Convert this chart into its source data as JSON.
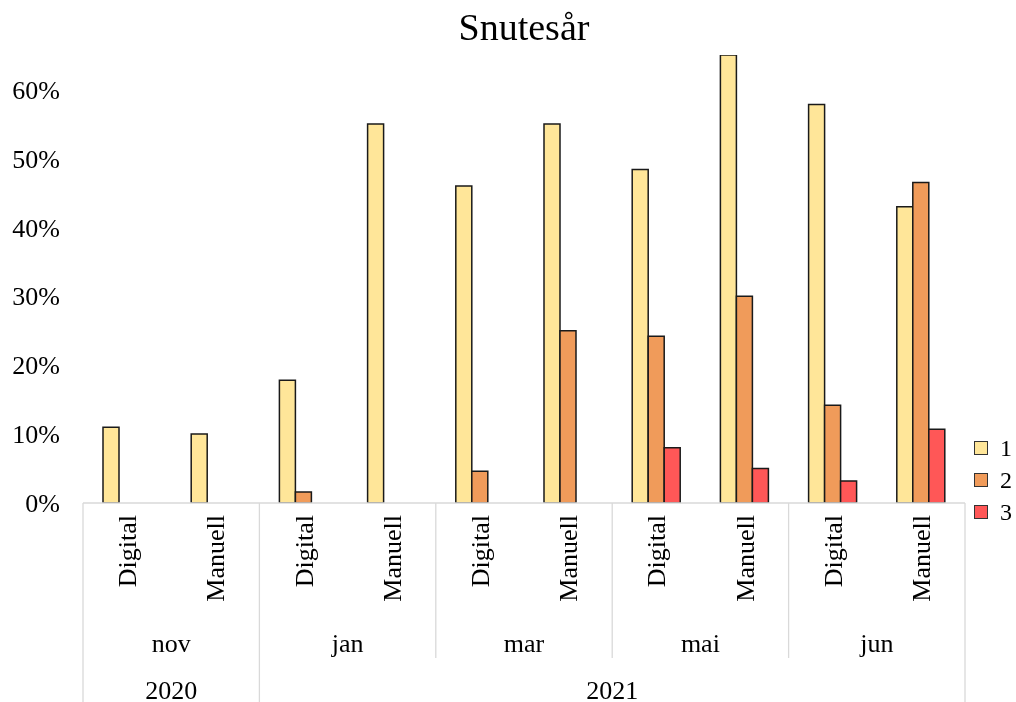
{
  "chart_data": {
    "type": "bar",
    "title": "Snutesår",
    "categories": [
      "Digital",
      "Manuell",
      "Digital",
      "Manuell",
      "Digital",
      "Manuell",
      "Digital",
      "Manuell",
      "Digital",
      "Manuell"
    ],
    "series": [
      {
        "name": "1",
        "color": "#ffe699",
        "values": [
          11,
          10,
          17.8,
          55,
          46,
          55,
          48.4,
          65,
          57.8,
          43
        ]
      },
      {
        "name": "2",
        "color": "#f09b5a",
        "values": [
          null,
          null,
          1.6,
          null,
          4.6,
          25,
          24.2,
          30,
          14.2,
          46.5
        ]
      },
      {
        "name": "3",
        "color": "#ff5757",
        "values": [
          null,
          null,
          null,
          null,
          null,
          null,
          8,
          5,
          3.2,
          10.7
        ]
      }
    ],
    "ylim": [
      0,
      65
    ],
    "yticks": [
      {
        "value": 0,
        "label": "0%"
      },
      {
        "value": 10,
        "label": "10%"
      },
      {
        "value": 20,
        "label": "20%"
      },
      {
        "value": 30,
        "label": "30%"
      },
      {
        "value": 40,
        "label": "40%"
      },
      {
        "value": 50,
        "label": "50%"
      },
      {
        "value": 60,
        "label": "60%"
      }
    ],
    "annotations": [
      "nov",
      "jan",
      "mar",
      "mai",
      "jun",
      "2020",
      "2021"
    ],
    "legend": "right"
  }
}
